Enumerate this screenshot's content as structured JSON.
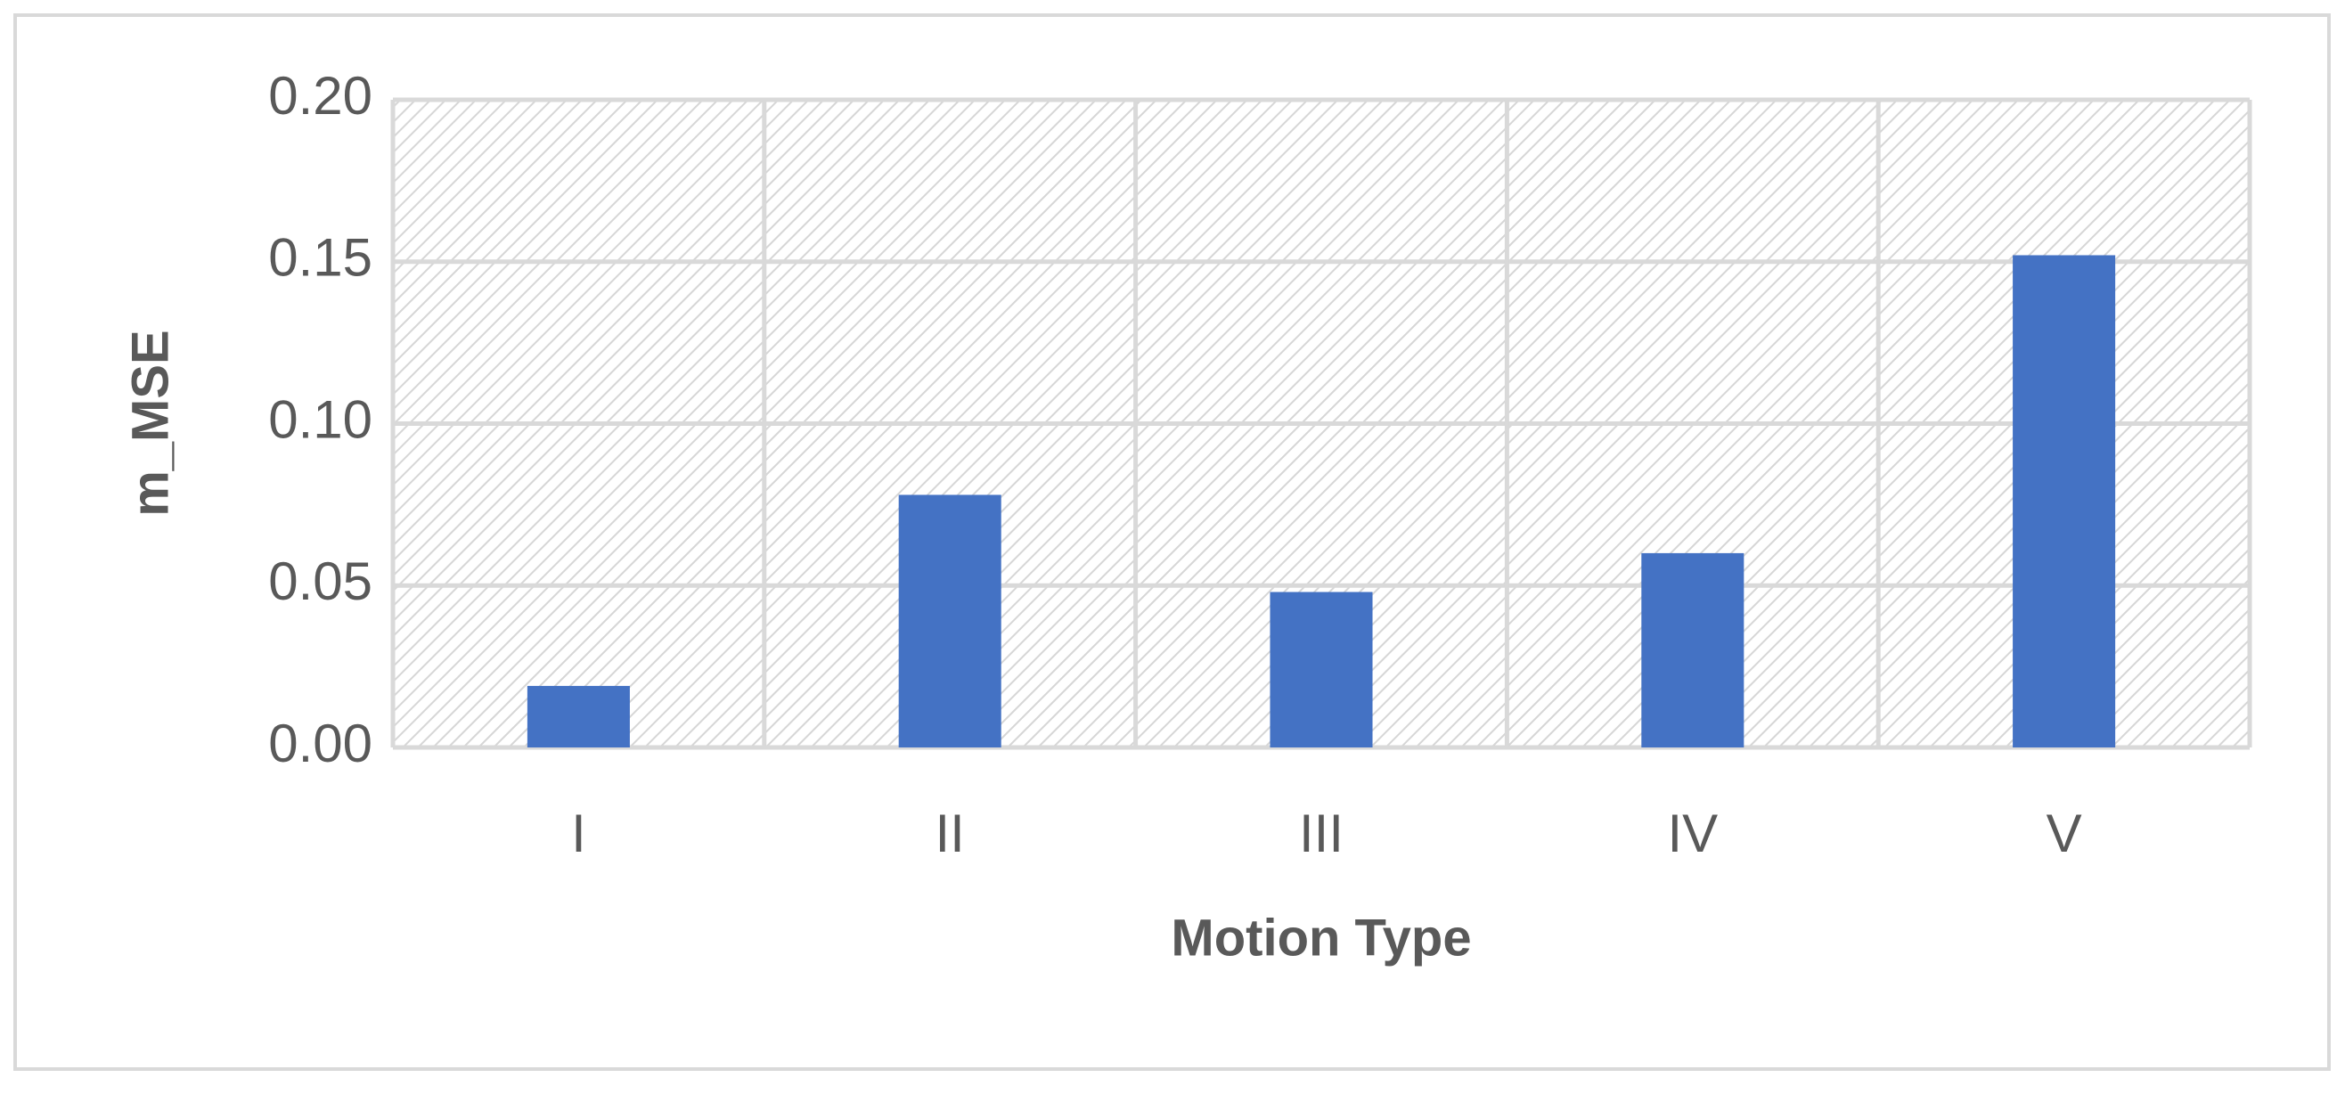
{
  "chart_data": {
    "type": "bar",
    "x_label": "Motion Type",
    "y_label": "m_MSE",
    "categories": [
      "I",
      "II",
      "III",
      "IV",
      "V"
    ],
    "values": [
      0.019,
      0.078,
      0.048,
      0.06,
      0.152
    ],
    "color": "#4472c4",
    "ylim": [
      0,
      0.2
    ],
    "yticks": [
      {
        "value": 0,
        "label": "0.00"
      },
      {
        "value": 0.05,
        "label": "0.05"
      },
      {
        "value": 0.1,
        "label": "0.10"
      },
      {
        "value": 0.15,
        "label": "0.15"
      },
      {
        "value": 0.2,
        "label": "0.20"
      }
    ],
    "grid": true
  }
}
